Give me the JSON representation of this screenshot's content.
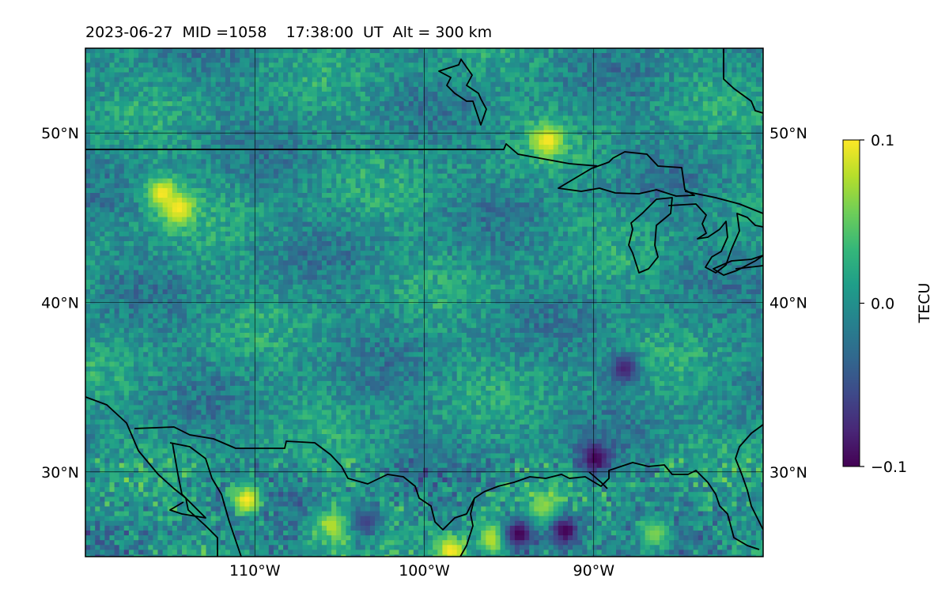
{
  "title": "2023-06-27  MID =1058    17:38:00  UT  Alt = 300 km",
  "map": {
    "lon_range": [
      -120,
      -80
    ],
    "lat_range": [
      25,
      55
    ],
    "lat_ticks": [
      {
        "lat": 50,
        "label": "50°N"
      },
      {
        "lat": 40,
        "label": "40°N"
      },
      {
        "lat": 30,
        "label": "30°N"
      }
    ],
    "lon_ticks": [
      {
        "lon": -110,
        "label": "110°W"
      },
      {
        "lon": -100,
        "label": "100°W"
      },
      {
        "lon": -90,
        "label": "90°W"
      }
    ],
    "grid": true
  },
  "colorbar": {
    "label": "TECU",
    "colormap": "viridis",
    "min": -0.1,
    "max": 0.1,
    "ticks": [
      {
        "value": 0.1,
        "label": "0.1"
      },
      {
        "value": 0.0,
        "label": "0.0"
      },
      {
        "value": -0.1,
        "label": "−0.1"
      }
    ]
  },
  "colors": {
    "viridis": [
      "#440154",
      "#482777",
      "#3e4989",
      "#31688e",
      "#26828e",
      "#1f9e89",
      "#35b779",
      "#6ece58",
      "#b5de2b",
      "#fde725"
    ],
    "coastline": "#000000",
    "gridline": "#000000"
  },
  "features": {
    "mean_value": 0.0,
    "hotspots": [
      {
        "lon": -110.5,
        "lat": 28.5,
        "value": 0.1
      },
      {
        "lon": -105.5,
        "lat": 27.0,
        "value": 0.08
      },
      {
        "lon": -98.5,
        "lat": 25.5,
        "value": 0.1
      },
      {
        "lon": -96.0,
        "lat": 26.2,
        "value": 0.09
      },
      {
        "lon": -93.0,
        "lat": 28.0,
        "value": 0.07
      },
      {
        "lon": -86.5,
        "lat": 26.5,
        "value": 0.06
      },
      {
        "lon": -92.8,
        "lat": 49.6,
        "value": 0.1
      },
      {
        "lon": -115.5,
        "lat": 46.5,
        "value": 0.1
      },
      {
        "lon": -114.5,
        "lat": 45.6,
        "value": 0.1
      }
    ],
    "lows": [
      {
        "lon": -94.5,
        "lat": 26.5,
        "value": -0.1
      },
      {
        "lon": -91.8,
        "lat": 26.7,
        "value": -0.1
      },
      {
        "lon": -103.5,
        "lat": 27.2,
        "value": -0.06
      },
      {
        "lon": -90.0,
        "lat": 30.9,
        "value": -0.1
      },
      {
        "lon": -88.3,
        "lat": 36.2,
        "value": -0.08
      }
    ]
  }
}
